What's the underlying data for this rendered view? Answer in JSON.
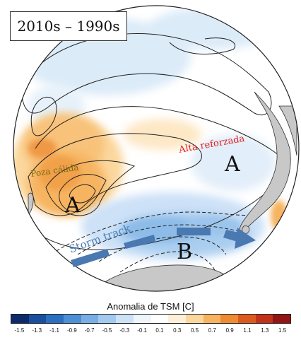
{
  "title": "2010s – 1990s",
  "labels": {
    "poza": "Poza cálida",
    "alta": "Alta reforzada",
    "storm": "Storm track",
    "a_left": "A",
    "a_right": "A",
    "b": "B"
  },
  "colorbar": {
    "title": "Anomalia de TSM [C]",
    "ticks": [
      "-1.5",
      "-1.3",
      "-1.1",
      "-0.9",
      "-0.7",
      "-0.5",
      "-0.3",
      "-0.1",
      "0.1",
      "0.3",
      "0.5",
      "0.7",
      "0.9",
      "1.1",
      "1.3",
      "1.5"
    ],
    "colors": [
      "#0d2a6b",
      "#1a4f9e",
      "#2b6fc0",
      "#4d8fd6",
      "#78aee3",
      "#a3c9ef",
      "#cde1f7",
      "#eef5fc",
      "#ffffff",
      "#fdf0d8",
      "#fbd79d",
      "#f6b460",
      "#ee8a32",
      "#dc5a1d",
      "#c13219",
      "#931414"
    ]
  },
  "colors": {
    "label_poza": "#7a6a10",
    "label_alta": "#e02020",
    "label_storm": "#4a7fb5",
    "arrow": "#4a78b0"
  }
}
